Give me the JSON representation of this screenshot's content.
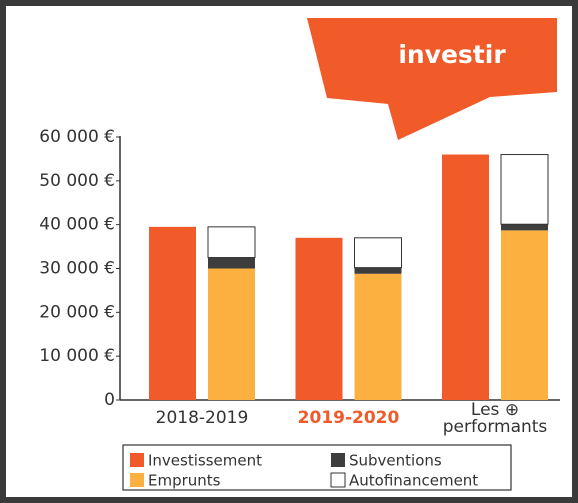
{
  "banner": "investir",
  "chart_data": {
    "type": "stacked-grouped-bar",
    "categories": [
      "2018-2019",
      "2019-2020",
      "Les ⊕ performants"
    ],
    "highlight": "2019-2020",
    "series": [
      {
        "name": "Investissement",
        "color": "#f15a29",
        "stack": "a",
        "values": [
          39500,
          37000,
          56000
        ]
      },
      {
        "name": "Emprunts",
        "color": "#fbb040",
        "stack": "b",
        "values": [
          30000,
          28800,
          38700
        ]
      },
      {
        "name": "Subventions",
        "color": "#3d3d3d",
        "stack": "b",
        "values": [
          2500,
          1400,
          1400
        ]
      },
      {
        "name": "Autofinancement",
        "color": "#ffffff",
        "stack": "b",
        "values": [
          7000,
          6800,
          15900
        ]
      }
    ],
    "ylim": [
      0,
      60000
    ],
    "yticks": [
      0,
      {
        "value": 10000,
        "label": "10 000 €"
      },
      {
        "value": 20000,
        "label": "20 000 €"
      },
      {
        "value": 30000,
        "label": "30 000 €"
      },
      {
        "value": 40000,
        "label": "40 000 €"
      },
      {
        "value": 50000,
        "label": "50 000 €"
      },
      {
        "value": 60000,
        "label": "60 000 €"
      }
    ]
  }
}
